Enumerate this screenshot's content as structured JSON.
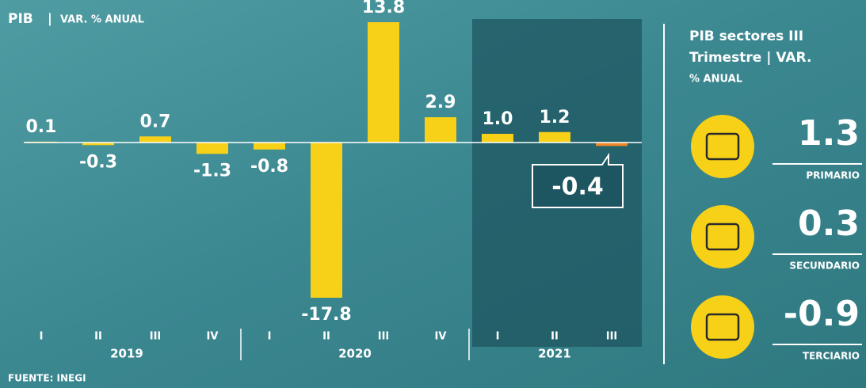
{
  "chart_data": {
    "type": "bar",
    "title": "PIB",
    "subtitle": "VAR. % ANUAL",
    "categories": [
      "I",
      "II",
      "III",
      "IV",
      "I",
      "II",
      "III",
      "IV",
      "I",
      "II",
      "III"
    ],
    "groups": [
      {
        "label": "2019",
        "size": 4
      },
      {
        "label": "2020",
        "size": 4
      },
      {
        "label": "2021",
        "size": 3
      }
    ],
    "values": [
      0.1,
      -0.3,
      0.7,
      -1.3,
      -0.8,
      -17.8,
      13.8,
      2.9,
      1.0,
      1.2,
      -0.4
    ],
    "value_labels": [
      "0.1",
      "-0.3",
      "0.7",
      "-1.3",
      "-0.8",
      "-17.8",
      "13.8",
      "2.9",
      "1.0",
      "1.2",
      "-0.4"
    ],
    "colors": [
      "#f7d117",
      "#f7d117",
      "#f7d117",
      "#f7d117",
      "#f7d117",
      "#f7d117",
      "#f7d117",
      "#f7d117",
      "#f7d117",
      "#f7d117",
      "#f0882a"
    ],
    "source": "FUENTE: INEGI"
  },
  "sectors": {
    "title_lines": [
      "PIB sectores III",
      "Trimestre | VAR.",
      "% ANUAL"
    ],
    "items": [
      {
        "name": "PRIMARIO",
        "value": 1.3
      },
      {
        "name": "SECUNDARIO",
        "value": 0.3
      },
      {
        "name": "TERCIARIO",
        "value": -0.9
      }
    ]
  }
}
